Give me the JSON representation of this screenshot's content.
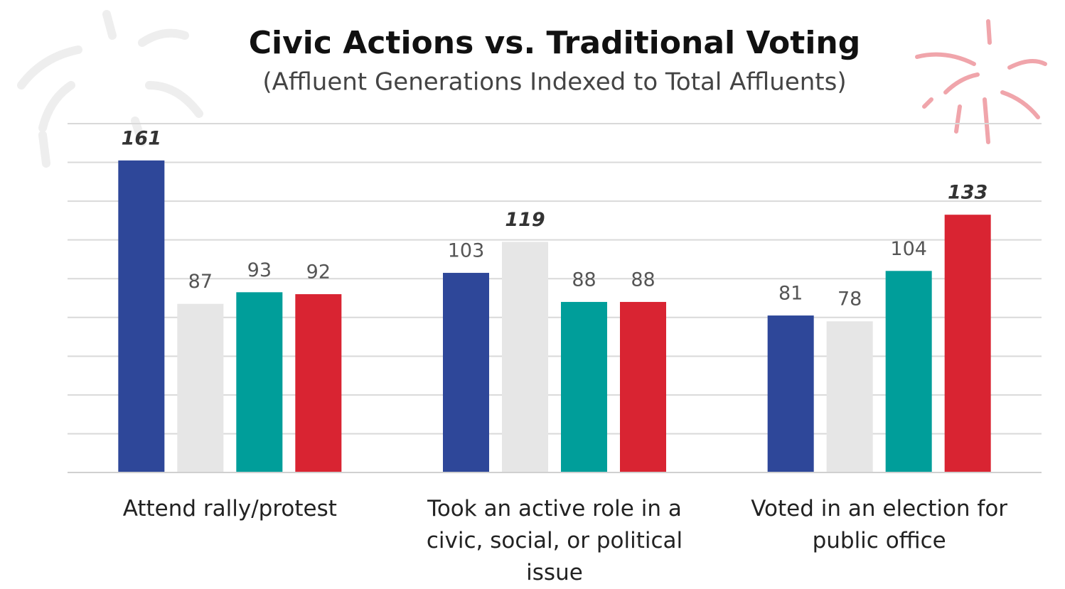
{
  "chart_data": {
    "type": "bar",
    "title": "Civic Actions vs. Traditional Voting",
    "subtitle": "(Affluent Generations Indexed to Total Affluents)",
    "categories": [
      "Attend rally/protest",
      "Took an active role in a civic, social, or political issue",
      "Voted in an election for public office"
    ],
    "series": [
      {
        "color": "#2e4799",
        "values": [
          161,
          103,
          81
        ]
      },
      {
        "color": "#e6e6e6",
        "values": [
          87,
          119,
          78
        ]
      },
      {
        "color": "#009e9a",
        "values": [
          93,
          88,
          104
        ]
      },
      {
        "color": "#d92432",
        "values": [
          92,
          88,
          133
        ]
      }
    ],
    "ylim": [
      0,
      180
    ],
    "yticks": [
      0,
      20,
      40,
      60,
      80,
      100,
      120,
      140,
      160,
      180
    ],
    "grid": true,
    "emphasize_max": true
  }
}
